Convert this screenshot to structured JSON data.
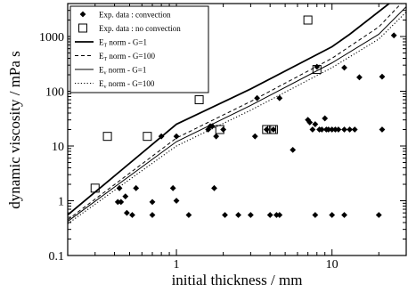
{
  "chart_data": {
    "type": "scatter",
    "xlabel": "initial thickness / mm",
    "ylabel": "dynamic viscosity / mPa s",
    "x_scale": "log",
    "y_scale": "log",
    "xlim": [
      0.2,
      30
    ],
    "ylim": [
      0.1,
      4000
    ],
    "x_ticks": [
      1,
      10
    ],
    "x_tick_labels": [
      "1",
      "10"
    ],
    "y_ticks": [
      0.1,
      1,
      10,
      100,
      1000
    ],
    "y_tick_labels": [
      "0.1",
      "1",
      "10",
      "100",
      "1000"
    ],
    "grid": false,
    "legend_position": "top-left",
    "legend": [
      {
        "text": "Exp. data : convection",
        "marker": "filled-diamond"
      },
      {
        "text": "Exp. data : no convection",
        "marker": "open-square"
      },
      {
        "text_main": "E",
        "text_sub": "T",
        "text_rest": " norm - G=1",
        "line": "solid-thick"
      },
      {
        "text_main": "E",
        "text_sub": "T",
        "text_rest": " norm - G=100",
        "line": "dashed"
      },
      {
        "text_main": "E",
        "text_sub": "v",
        "text_rest": " norm - G=1",
        "line": "solid-thin"
      },
      {
        "text_main": "E",
        "text_sub": "v",
        "text_rest": " norm - G=100",
        "line": "dotted"
      }
    ],
    "series": [
      {
        "name": "Exp. data : convection",
        "kind": "points",
        "marker": "filled-diamond",
        "points": [
          [
            0.42,
            0.95
          ],
          [
            0.43,
            1.7
          ],
          [
            0.44,
            0.95
          ],
          [
            0.47,
            1.2
          ],
          [
            0.48,
            0.6
          ],
          [
            0.52,
            0.55
          ],
          [
            0.55,
            1.7
          ],
          [
            0.7,
            0.55
          ],
          [
            0.7,
            0.95
          ],
          [
            0.8,
            15
          ],
          [
            0.95,
            1.7
          ],
          [
            1.0,
            1.0
          ],
          [
            1.0,
            15
          ],
          [
            1.2,
            0.55
          ],
          [
            1.6,
            20
          ],
          [
            1.65,
            23
          ],
          [
            1.7,
            23
          ],
          [
            1.75,
            1.7
          ],
          [
            1.8,
            15
          ],
          [
            2.0,
            20
          ],
          [
            2.05,
            0.55
          ],
          [
            2.5,
            0.55
          ],
          [
            3.0,
            0.55
          ],
          [
            3.2,
            15
          ],
          [
            3.3,
            75
          ],
          [
            3.8,
            20
          ],
          [
            4.0,
            0.55
          ],
          [
            4.2,
            20
          ],
          [
            4.4,
            0.55
          ],
          [
            4.6,
            0.55
          ],
          [
            4.6,
            75
          ],
          [
            5.6,
            8.5
          ],
          [
            7.0,
            30
          ],
          [
            7.2,
            27
          ],
          [
            7.5,
            20
          ],
          [
            7.8,
            0.55
          ],
          [
            7.8,
            25
          ],
          [
            8.0,
            280
          ],
          [
            8.3,
            20
          ],
          [
            8.6,
            20
          ],
          [
            9.0,
            32
          ],
          [
            9.2,
            20
          ],
          [
            9.5,
            20
          ],
          [
            10.0,
            0.55
          ],
          [
            10.0,
            20
          ],
          [
            10.5,
            20
          ],
          [
            11.0,
            20
          ],
          [
            12.0,
            20
          ],
          [
            12.0,
            0.55
          ],
          [
            12.0,
            270
          ],
          [
            13.0,
            20
          ],
          [
            14.0,
            20
          ],
          [
            15.0,
            180
          ],
          [
            20.0,
            0.55
          ],
          [
            21.0,
            185
          ],
          [
            21.0,
            20
          ],
          [
            25.0,
            1050
          ]
        ]
      },
      {
        "name": "Exp. data : no convection",
        "kind": "points",
        "marker": "open-square",
        "points": [
          [
            0.3,
            1.7
          ],
          [
            0.36,
            15
          ],
          [
            0.65,
            15
          ],
          [
            1.4,
            70
          ],
          [
            1.9,
            20
          ],
          [
            3.8,
            20
          ],
          [
            4.1,
            20
          ],
          [
            4.2,
            20
          ],
          [
            7.0,
            2000
          ],
          [
            8.0,
            250
          ]
        ]
      },
      {
        "name": "ET norm - G=1",
        "kind": "line",
        "style": "solid-thick",
        "x": [
          0.2,
          1,
          3,
          10,
          13,
          30
        ],
        "y": [
          0.55,
          25,
          110,
          650,
          1100,
          7000
        ]
      },
      {
        "name": "ET norm - G=100",
        "kind": "line",
        "style": "dashed",
        "x": [
          0.2,
          1,
          3,
          10,
          20,
          30
        ],
        "y": [
          0.45,
          14,
          65,
          400,
          1500,
          5000
        ]
      },
      {
        "name": "Ev norm - G=1",
        "kind": "line",
        "style": "solid-thin",
        "x": [
          0.2,
          1,
          3,
          10,
          20,
          30
        ],
        "y": [
          0.42,
          12,
          55,
          330,
          1100,
          3500
        ]
      },
      {
        "name": "Ev norm - G=100",
        "kind": "line",
        "style": "dotted",
        "x": [
          0.2,
          1,
          3,
          10,
          20,
          30
        ],
        "y": [
          0.38,
          10,
          45,
          270,
          900,
          2800
        ]
      }
    ]
  }
}
